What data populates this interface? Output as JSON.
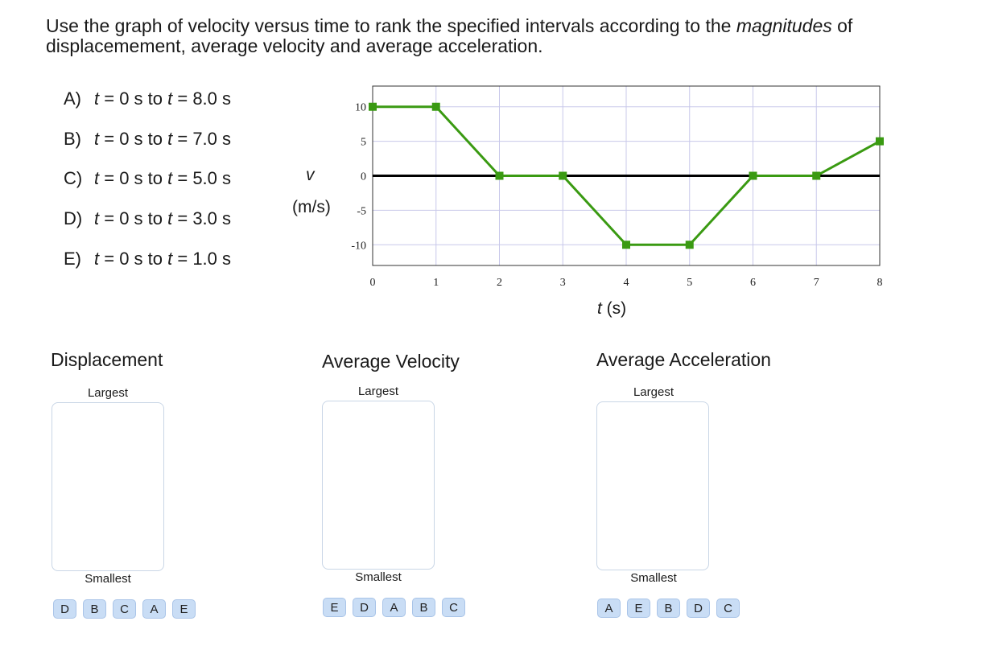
{
  "question": {
    "part1": "Use the graph of velocity versus time to rank the specified intervals according to the ",
    "emph": "magnitudes",
    "part2": " of displacemement, average velocity and average acceleration."
  },
  "intervals": [
    {
      "key": "A)",
      "t_start_var": "t",
      "start": " = 0 s to ",
      "t_end_var": "t",
      "end": " = 8.0 s"
    },
    {
      "key": "B)",
      "t_start_var": "t",
      "start": " = 0 s to ",
      "t_end_var": "t",
      "end": " = 7.0 s"
    },
    {
      "key": "C)",
      "t_start_var": "t",
      "start": " = 0 s to ",
      "t_end_var": "t",
      "end": " = 5.0 s"
    },
    {
      "key": "D)",
      "t_start_var": "t",
      "start": " = 0 s to ",
      "t_end_var": "t",
      "end": " = 3.0 s"
    },
    {
      "key": "E)",
      "t_start_var": "t",
      "start": " = 0 s to ",
      "t_end_var": "t",
      "end": " = 1.0 s"
    }
  ],
  "chart_data": {
    "type": "line",
    "x": [
      0,
      1,
      2,
      3,
      4,
      5,
      6,
      7,
      8
    ],
    "series": [
      {
        "values": [
          10,
          10,
          0,
          0,
          -10,
          -10,
          0,
          0,
          5
        ],
        "color": "#3a9a12"
      }
    ],
    "xlabel_var": "t",
    "xlabel_unit": " (s)",
    "ylabel_var": "v",
    "ylabel_unit": "(m/s)",
    "xlim": [
      0,
      8
    ],
    "ylim": [
      -13,
      13
    ],
    "xticks": [
      "0",
      "1",
      "2",
      "3",
      "4",
      "5",
      "6",
      "7",
      "8"
    ],
    "yticks": [
      {
        "v": 10,
        "label": "10"
      },
      {
        "v": 5,
        "label": "5"
      },
      {
        "v": 0,
        "label": "0"
      },
      {
        "v": -5,
        "label": "-5"
      },
      {
        "v": -10,
        "label": "-10"
      }
    ],
    "grid": true,
    "grid_color": "#c8c8ea"
  },
  "rankings": [
    {
      "title": "Displacement",
      "largest": "Largest",
      "smallest": "Smallest",
      "tiles": [
        "D",
        "B",
        "C",
        "A",
        "E"
      ]
    },
    {
      "title": "Average Velocity",
      "largest": "Largest",
      "smallest": "Smallest",
      "tiles": [
        "E",
        "D",
        "A",
        "B",
        "C"
      ]
    },
    {
      "title": "Average Acceleration",
      "largest": "Largest",
      "smallest": "Smallest",
      "tiles": [
        "A",
        "E",
        "B",
        "D",
        "C"
      ]
    }
  ],
  "colors": {
    "tile_bg": "#c9ddf5",
    "box_border": "#c9d6e6",
    "line": "#3a9a12"
  }
}
